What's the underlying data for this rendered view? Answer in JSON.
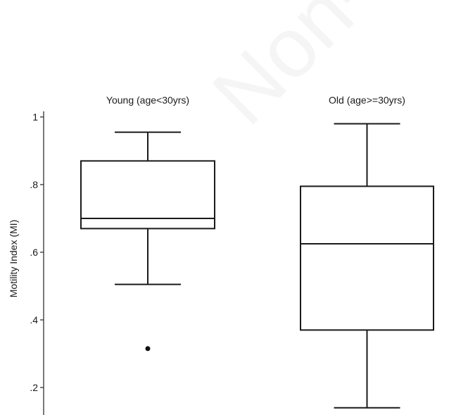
{
  "watermark": "Non-c",
  "chart_data": {
    "type": "boxplot",
    "title": "",
    "xlabel": "",
    "ylabel": "Motility Index (MI)",
    "ylim": [
      0.15,
      1.0
    ],
    "yticks": [
      {
        "value": 1.0,
        "label": "1"
      },
      {
        "value": 0.8,
        "label": ".8"
      },
      {
        "value": 0.6,
        "label": ".6"
      },
      {
        "value": 0.4,
        "label": ".4"
      },
      {
        "value": 0.2,
        "label": ".2"
      }
    ],
    "grid": false,
    "groups": [
      {
        "name": "Young (age<30yrs)",
        "whisker_low": 0.505,
        "q1": 0.67,
        "median": 0.7,
        "q3": 0.87,
        "whisker_high": 0.955,
        "outliers": [
          0.315
        ]
      },
      {
        "name": "Old (age>=30yrs)",
        "whisker_low": 0.14,
        "q1": 0.37,
        "median": 0.625,
        "q3": 0.795,
        "whisker_high": 0.98,
        "outliers": []
      }
    ]
  }
}
